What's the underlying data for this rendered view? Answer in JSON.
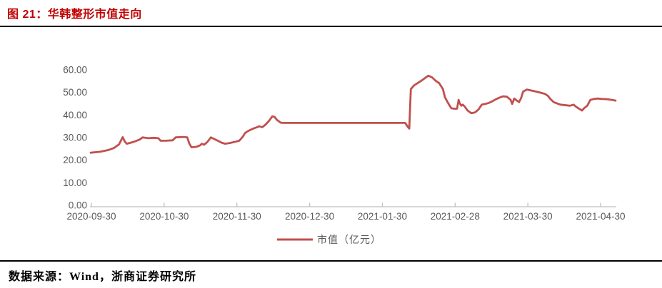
{
  "header": {
    "title": "图 21：华韩整形市值走向",
    "title_color": "#C00000"
  },
  "footer": {
    "source_text": "数据来源：Wind，浙商证券研究所"
  },
  "chart_data": {
    "type": "line",
    "title": "华韩整形市值走向",
    "legend": [
      "市值（亿元）"
    ],
    "legend_position": "bottom-center",
    "grid": false,
    "ylim": [
      0,
      60
    ],
    "y_ticks": [
      "0.00",
      "10.00",
      "20.00",
      "30.00",
      "40.00",
      "50.00",
      "60.00"
    ],
    "x_tick_labels": [
      "2020-09-30",
      "2020-10-30",
      "2020-11-30",
      "2020-12-30",
      "2021-01-30",
      "2021-02-28",
      "2021-03-30",
      "2021-04-30"
    ],
    "line_color": "#C0504D",
    "axis_line_color": "#BFBFBF",
    "axis_text_color": "#595959",
    "x_is_normalized_time": "0 = 2020-09-30 tick, 1 = right edge (~2021-05-07)",
    "points": [
      [
        0.0,
        23.3
      ],
      [
        0.018,
        23.7
      ],
      [
        0.034,
        24.5
      ],
      [
        0.045,
        25.5
      ],
      [
        0.054,
        27.0
      ],
      [
        0.061,
        30.2
      ],
      [
        0.065,
        28.2
      ],
      [
        0.069,
        27.3
      ],
      [
        0.082,
        28.1
      ],
      [
        0.093,
        29.1
      ],
      [
        0.099,
        30.1
      ],
      [
        0.11,
        29.7
      ],
      [
        0.12,
        29.9
      ],
      [
        0.129,
        29.7
      ],
      [
        0.133,
        28.6
      ],
      [
        0.144,
        28.6
      ],
      [
        0.156,
        28.8
      ],
      [
        0.162,
        30.1
      ],
      [
        0.178,
        30.3
      ],
      [
        0.184,
        30.1
      ],
      [
        0.188,
        27.3
      ],
      [
        0.192,
        25.7
      ],
      [
        0.201,
        25.9
      ],
      [
        0.208,
        26.5
      ],
      [
        0.212,
        27.3
      ],
      [
        0.216,
        26.8
      ],
      [
        0.222,
        28.0
      ],
      [
        0.229,
        30.1
      ],
      [
        0.235,
        29.4
      ],
      [
        0.242,
        28.6
      ],
      [
        0.249,
        27.8
      ],
      [
        0.256,
        27.3
      ],
      [
        0.265,
        27.6
      ],
      [
        0.273,
        28.0
      ],
      [
        0.283,
        28.6
      ],
      [
        0.29,
        30.4
      ],
      [
        0.294,
        32.0
      ],
      [
        0.299,
        32.8
      ],
      [
        0.306,
        33.6
      ],
      [
        0.313,
        34.3
      ],
      [
        0.317,
        34.6
      ],
      [
        0.321,
        35.0
      ],
      [
        0.327,
        34.6
      ],
      [
        0.333,
        35.7
      ],
      [
        0.34,
        37.5
      ],
      [
        0.346,
        39.4
      ],
      [
        0.35,
        39.2
      ],
      [
        0.355,
        37.8
      ],
      [
        0.362,
        36.6
      ],
      [
        0.367,
        36.5
      ],
      [
        0.399,
        36.5
      ],
      [
        0.439,
        36.5
      ],
      [
        0.48,
        36.5
      ],
      [
        0.521,
        36.5
      ],
      [
        0.562,
        36.5
      ],
      [
        0.599,
        36.5
      ],
      [
        0.604,
        34.8
      ],
      [
        0.607,
        34.0
      ],
      [
        0.61,
        51.5
      ],
      [
        0.616,
        53.1
      ],
      [
        0.63,
        55.2
      ],
      [
        0.643,
        57.4
      ],
      [
        0.65,
        56.7
      ],
      [
        0.657,
        55.2
      ],
      [
        0.664,
        54.1
      ],
      [
        0.671,
        51.5
      ],
      [
        0.675,
        47.8
      ],
      [
        0.68,
        45.7
      ],
      [
        0.684,
        44.1
      ],
      [
        0.687,
        43.0
      ],
      [
        0.692,
        42.8
      ],
      [
        0.698,
        42.8
      ],
      [
        0.701,
        46.7
      ],
      [
        0.703,
        45.2
      ],
      [
        0.706,
        44.1
      ],
      [
        0.709,
        44.6
      ],
      [
        0.713,
        43.6
      ],
      [
        0.718,
        42.0
      ],
      [
        0.725,
        40.8
      ],
      [
        0.732,
        41.1
      ],
      [
        0.739,
        42.5
      ],
      [
        0.745,
        44.6
      ],
      [
        0.752,
        44.9
      ],
      [
        0.759,
        45.4
      ],
      [
        0.766,
        46.2
      ],
      [
        0.773,
        47.1
      ],
      [
        0.78,
        47.8
      ],
      [
        0.786,
        48.3
      ],
      [
        0.793,
        48.1
      ],
      [
        0.8,
        46.7
      ],
      [
        0.803,
        44.9
      ],
      [
        0.807,
        47.3
      ],
      [
        0.812,
        46.4
      ],
      [
        0.816,
        45.7
      ],
      [
        0.82,
        47.5
      ],
      [
        0.824,
        50.4
      ],
      [
        0.831,
        51.3
      ],
      [
        0.838,
        50.9
      ],
      [
        0.848,
        50.4
      ],
      [
        0.857,
        49.9
      ],
      [
        0.865,
        49.4
      ],
      [
        0.871,
        48.5
      ],
      [
        0.875,
        47.3
      ],
      [
        0.882,
        45.7
      ],
      [
        0.888,
        45.2
      ],
      [
        0.895,
        44.6
      ],
      [
        0.906,
        44.3
      ],
      [
        0.913,
        44.1
      ],
      [
        0.92,
        44.6
      ],
      [
        0.925,
        43.6
      ],
      [
        0.929,
        43.0
      ],
      [
        0.936,
        42.0
      ],
      [
        0.94,
        43.0
      ],
      [
        0.946,
        44.1
      ],
      [
        0.952,
        46.7
      ],
      [
        0.959,
        47.1
      ],
      [
        0.966,
        47.3
      ],
      [
        0.974,
        47.1
      ],
      [
        0.984,
        47.0
      ],
      [
        0.993,
        46.7
      ],
      [
        1.0,
        46.4
      ]
    ]
  }
}
